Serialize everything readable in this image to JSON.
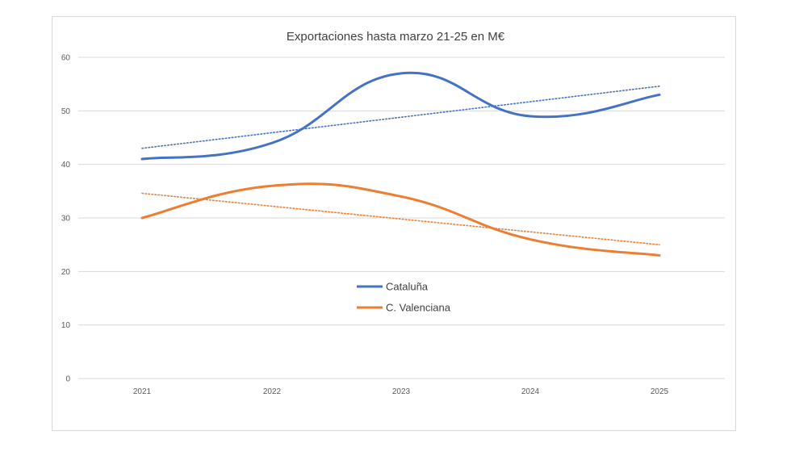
{
  "chart_data": {
    "type": "line",
    "title": "Exportaciones hasta marzo 21-25 en M€",
    "xlabel": "",
    "ylabel": "",
    "categories": [
      "2021",
      "2022",
      "2023",
      "2024",
      "2025"
    ],
    "ylim": [
      0,
      60
    ],
    "yticks": [
      0,
      10,
      20,
      30,
      40,
      50,
      60
    ],
    "grid": true,
    "legend_position": "center",
    "series": [
      {
        "name": "Cataluña",
        "values": [
          41,
          44,
          57,
          49,
          53
        ],
        "color": "#4472c4",
        "trendline": true
      },
      {
        "name": "C. Valenciana",
        "values": [
          30,
          36,
          34,
          26,
          23
        ],
        "color": "#ed7d31",
        "trendline": true
      }
    ]
  }
}
